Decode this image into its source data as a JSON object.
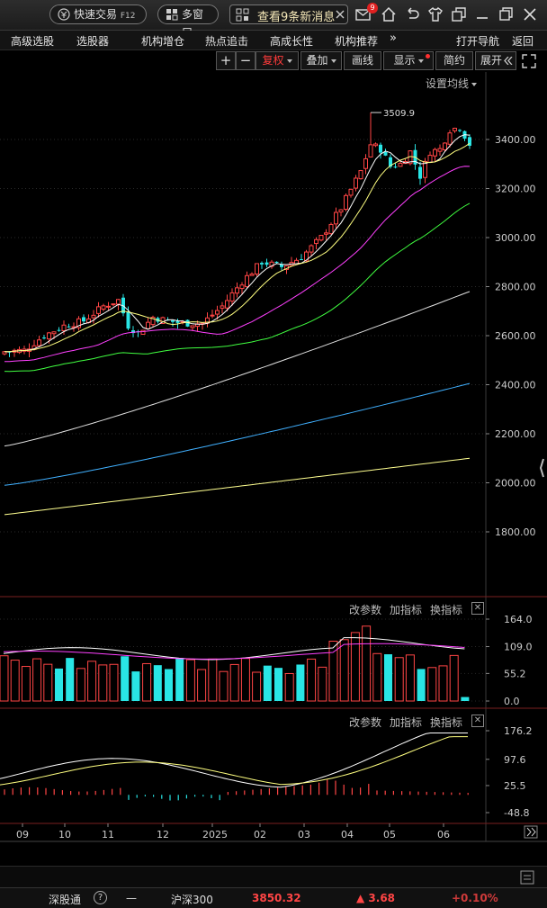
{
  "topbar": {
    "quick_trade": "快速交易",
    "quick_trade_key": "F12",
    "multi_window": "多窗口",
    "message_text": "查看9条新消息",
    "mail_badge": "9"
  },
  "menu": {
    "items": [
      "高级选股",
      "选股器",
      "机构增仓",
      "热点追击",
      "高成长性",
      "机构推荐"
    ],
    "more": "»",
    "open_nav": "打开导航",
    "back": "返回"
  },
  "toolbar": {
    "plus": "+",
    "minus": "−",
    "fuquan": "复权",
    "overlay": "叠加",
    "draw": "画线",
    "display": "显示",
    "simple": "简约",
    "expand": "展开"
  },
  "main_chart": {
    "settings_label": "设置均线",
    "peak_label": "3509.9",
    "y_ticks": [
      "3400.00",
      "3200.00",
      "3000.00",
      "2800.00",
      "2600.00",
      "2400.00",
      "2200.00",
      "2000.00",
      "1800.00"
    ]
  },
  "vol_panel": {
    "btn_params": "改参数",
    "btn_add": "加指标",
    "btn_swap": "换指标",
    "y_ticks": [
      "164.0",
      "109.0",
      "55.2",
      "0.0"
    ]
  },
  "macd_panel": {
    "btn_params": "改参数",
    "btn_add": "加指标",
    "btn_swap": "换指标",
    "y_ticks": [
      "176.2",
      "97.6",
      "25.5",
      "-48.8"
    ]
  },
  "time_axis": [
    "09",
    "10",
    "11",
    "12",
    "2025",
    "02",
    "03",
    "04",
    "05",
    "06"
  ],
  "status": {
    "sz_connect": "深股通",
    "help": "?",
    "dash": "—",
    "index_name": "沪深300",
    "index_value": "3850.32",
    "change": "▲ 3.68",
    "partial": "+0.10%"
  },
  "colors": {
    "up": "#ff4545",
    "down": "#29e5e5",
    "ma5": "#ffffff",
    "ma10": "#ffff80",
    "ma20": "#ff40ff",
    "ma30": "#40ff40",
    "ma60": "#e0e0e0",
    "ma120": "#40b0ff",
    "ma250": "#ffff90"
  }
}
